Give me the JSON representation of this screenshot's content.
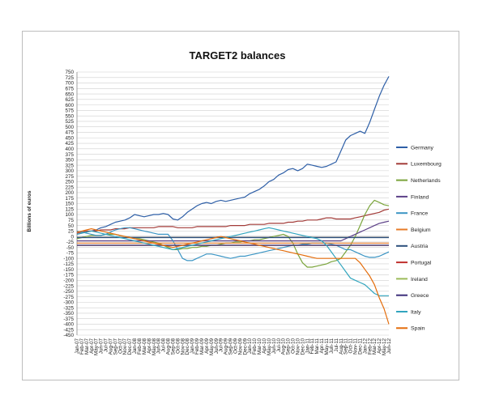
{
  "chart_data": {
    "type": "line",
    "title": "TARGET2 balances",
    "xlabel": "",
    "ylabel": "Billions of euros",
    "ylim": [
      -450,
      750
    ],
    "ytick_step": 25,
    "grid": true,
    "legend_position": "right",
    "x": [
      "Jan-07",
      "Feb-07",
      "Mar-07",
      "Apr-07",
      "May-07",
      "Jun-07",
      "Jul-07",
      "Aug-07",
      "Sep-07",
      "Oct-07",
      "Nov-07",
      "Dec-07",
      "Jan-08",
      "Feb-08",
      "Mar-08",
      "Apr-08",
      "May-08",
      "Jun-08",
      "Jul-08",
      "Aug-08",
      "Sep-08",
      "Oct-08",
      "Nov-08",
      "Dec-08",
      "Jan-09",
      "Feb-09",
      "Mar-09",
      "Apr-09",
      "May-09",
      "Jun-09",
      "Jul-09",
      "Aug-09",
      "Sep-09",
      "Oct-09",
      "Nov-09",
      "Dec-09",
      "Jan-10",
      "Feb-10",
      "Mar-10",
      "Apr-10",
      "May-10",
      "Jun-10",
      "Jul-10",
      "Aug-10",
      "Sep-10",
      "Oct-10",
      "Nov-10",
      "Dec-10",
      "Jan-11",
      "Feb-11",
      "Mar-11",
      "Apr-11",
      "May-11",
      "Jun-11",
      "Jul-11",
      "Aug-11",
      "Sep-11",
      "Oct-11",
      "Nov-11",
      "Dec-11",
      "Jan-12",
      "Feb-12",
      "Mar-12",
      "Apr-12",
      "May-12",
      "Jun-12"
    ],
    "series": [
      {
        "name": "Germany",
        "color": "#2e5fa7",
        "values": [
          10,
          15,
          20,
          25,
          30,
          40,
          45,
          55,
          65,
          70,
          75,
          85,
          100,
          95,
          90,
          95,
          100,
          100,
          105,
          100,
          80,
          75,
          90,
          110,
          125,
          140,
          150,
          155,
          150,
          160,
          165,
          160,
          165,
          170,
          175,
          180,
          195,
          205,
          215,
          230,
          250,
          260,
          280,
          290,
          305,
          310,
          300,
          310,
          330,
          325,
          320,
          315,
          320,
          330,
          340,
          390,
          440,
          460,
          470,
          480,
          470,
          520,
          580,
          640,
          690,
          730
        ]
      },
      {
        "name": "Luxembourg",
        "color": "#a33b38",
        "values": [
          15,
          20,
          25,
          25,
          25,
          30,
          30,
          30,
          35,
          35,
          35,
          40,
          40,
          40,
          40,
          40,
          40,
          45,
          45,
          45,
          45,
          40,
          40,
          40,
          40,
          45,
          45,
          45,
          45,
          45,
          45,
          45,
          50,
          50,
          50,
          50,
          55,
          55,
          55,
          55,
          60,
          60,
          60,
          60,
          65,
          65,
          70,
          70,
          75,
          75,
          75,
          80,
          85,
          85,
          80,
          80,
          80,
          80,
          85,
          90,
          95,
          100,
          105,
          110,
          120,
          125
        ]
      },
      {
        "name": "Netherlands",
        "color": "#7aa43b",
        "values": [
          -10,
          -5,
          0,
          5,
          5,
          5,
          10,
          10,
          10,
          5,
          0,
          -5,
          -10,
          -10,
          -15,
          -20,
          -25,
          -30,
          -40,
          -50,
          -60,
          -60,
          -55,
          -55,
          -50,
          -50,
          -45,
          -45,
          -40,
          -40,
          -35,
          -30,
          -30,
          -25,
          -25,
          -20,
          -20,
          -15,
          -15,
          -10,
          -5,
          0,
          5,
          10,
          0,
          -30,
          -80,
          -120,
          -140,
          -140,
          -135,
          -130,
          -125,
          -115,
          -110,
          -100,
          -70,
          -40,
          0,
          50,
          100,
          140,
          165,
          155,
          145,
          140
        ]
      },
      {
        "name": "Finland",
        "color": "#5d4188",
        "values": [
          -20,
          -20,
          -20,
          -20,
          -20,
          -20,
          -20,
          -20,
          -20,
          -20,
          -20,
          -20,
          -20,
          -20,
          -20,
          -20,
          -20,
          -20,
          -20,
          -20,
          -20,
          -20,
          -20,
          -20,
          -20,
          -20,
          -20,
          -20,
          -20,
          -20,
          -20,
          -20,
          -20,
          -20,
          -20,
          -20,
          -20,
          -20,
          -20,
          -20,
          -20,
          -20,
          -20,
          -20,
          -20,
          -20,
          -20,
          -20,
          -20,
          -20,
          -20,
          -20,
          -20,
          -20,
          -20,
          -20,
          -10,
          0,
          10,
          20,
          30,
          40,
          50,
          60,
          65,
          70
        ]
      },
      {
        "name": "France",
        "color": "#3b95c4",
        "values": [
          25,
          20,
          15,
          10,
          5,
          5,
          10,
          20,
          30,
          35,
          40,
          40,
          35,
          30,
          25,
          20,
          15,
          10,
          10,
          10,
          -20,
          -60,
          -100,
          -110,
          -110,
          -100,
          -90,
          -80,
          -80,
          -85,
          -90,
          -95,
          -100,
          -95,
          -90,
          -90,
          -85,
          -80,
          -75,
          -70,
          -65,
          -60,
          -55,
          -50,
          -45,
          -40,
          -40,
          -35,
          -35,
          -30,
          -30,
          -30,
          -30,
          -35,
          -40,
          -50,
          -60,
          -60,
          -70,
          -80,
          -90,
          -95,
          -95,
          -90,
          -80,
          -70
        ]
      },
      {
        "name": "Belgium",
        "color": "#e77b28",
        "values": [
          -30,
          -30,
          -30,
          -30,
          -30,
          -30,
          -30,
          -30,
          -30,
          -30,
          -30,
          -30,
          -30,
          -30,
          -30,
          -30,
          -30,
          -30,
          -30,
          -30,
          -30,
          -30,
          -30,
          -30,
          -30,
          -30,
          -30,
          -30,
          -30,
          -30,
          -30,
          -30,
          -30,
          -30,
          -30,
          -30,
          -30,
          -30,
          -30,
          -30,
          -30,
          -30,
          -30,
          -30,
          -30,
          -30,
          -30,
          -30,
          -30,
          -30,
          -30,
          -30,
          -30,
          -30,
          -30,
          -30,
          -30,
          -30,
          -30,
          -30,
          -30,
          -30,
          -30,
          -30,
          -30,
          -30
        ]
      },
      {
        "name": "Austria",
        "color": "#2c4f7c",
        "values": [
          -5,
          -5,
          -5,
          -5,
          -5,
          -5,
          -5,
          -5,
          -5,
          -5,
          -5,
          -5,
          -5,
          -5,
          -5,
          -5,
          -5,
          -5,
          -5,
          -5,
          -5,
          -5,
          -5,
          -5,
          -5,
          -5,
          -5,
          -5,
          -5,
          -5,
          -5,
          -5,
          -5,
          -5,
          -5,
          -5,
          -5,
          -5,
          -5,
          -5,
          -5,
          -5,
          -5,
          -5,
          -5,
          -5,
          -5,
          -5,
          -5,
          -5,
          -5,
          -5,
          -5,
          -5,
          -5,
          -5,
          -5,
          -5,
          -5,
          -5,
          -5,
          -5,
          -5,
          -5,
          -5,
          -5
        ]
      },
      {
        "name": "Portugal",
        "color": "#c0302e",
        "values": [
          -40,
          -40,
          -40,
          -40,
          -40,
          -40,
          -40,
          -40,
          -40,
          -40,
          -40,
          -40,
          -40,
          -40,
          -40,
          -40,
          -40,
          -40,
          -40,
          -40,
          -40,
          -40,
          -40,
          -40,
          -40,
          -40,
          -40,
          -40,
          -40,
          -40,
          -40,
          -40,
          -40,
          -40,
          -40,
          -40,
          -40,
          -40,
          -40,
          -40,
          -40,
          -40,
          -40,
          -40,
          -40,
          -40,
          -40,
          -40,
          -40,
          -40,
          -40,
          -40,
          -40,
          -40,
          -40,
          -40,
          -40,
          -40,
          -40,
          -40,
          -40,
          -40,
          -40,
          -40,
          -40,
          -40
        ]
      },
      {
        "name": "Ireland",
        "color": "#9bbb59",
        "values": [
          -40,
          -40,
          -40,
          -40,
          -40,
          -40,
          -40,
          -40,
          -40,
          -40,
          -40,
          -40,
          -40,
          -40,
          -40,
          -40,
          -40,
          -40,
          -40,
          -40,
          -40,
          -40,
          -40,
          -40,
          -40,
          -40,
          -40,
          -40,
          -40,
          -40,
          -40,
          -40,
          -40,
          -40,
          -40,
          -40,
          -40,
          -40,
          -40,
          -40,
          -40,
          -40,
          -40,
          -40,
          -40,
          -40,
          -40,
          -40,
          -40,
          -40,
          -40,
          -40,
          -40,
          -40,
          -40,
          -40,
          -40,
          -40,
          -40,
          -40,
          -40,
          -40,
          -40,
          -40,
          -40,
          -40
        ]
      },
      {
        "name": "Greece",
        "color": "#3c2e7a",
        "values": [
          -40,
          -40,
          -40,
          -40,
          -40,
          -40,
          -40,
          -40,
          -40,
          -40,
          -40,
          -40,
          -40,
          -40,
          -40,
          -40,
          -40,
          -40,
          -40,
          -40,
          -40,
          -40,
          -40,
          -40,
          -40,
          -40,
          -40,
          -40,
          -40,
          -40,
          -40,
          -40,
          -40,
          -40,
          -40,
          -40,
          -40,
          -40,
          -40,
          -40,
          -40,
          -40,
          -40,
          -40,
          -40,
          -40,
          -40,
          -40,
          -40,
          -40,
          -40,
          -40,
          -40,
          -40,
          -40,
          -40,
          -40,
          -40,
          -40,
          -40,
          -40,
          -40,
          -40,
          -40,
          -40,
          -40
        ]
      },
      {
        "name": "Italy",
        "color": "#31a5be",
        "values": [
          10,
          15,
          20,
          25,
          20,
          15,
          10,
          5,
          0,
          -5,
          -10,
          -15,
          -20,
          -25,
          -30,
          -35,
          -40,
          -45,
          -50,
          -55,
          -60,
          -55,
          -50,
          -45,
          -40,
          -35,
          -30,
          -25,
          -20,
          -15,
          -10,
          -5,
          0,
          5,
          10,
          15,
          20,
          25,
          30,
          35,
          40,
          35,
          30,
          25,
          20,
          15,
          10,
          5,
          0,
          -5,
          -10,
          -20,
          -40,
          -70,
          -100,
          -130,
          -160,
          -190,
          -200,
          -210,
          -220,
          -240,
          -260,
          -270,
          -270,
          -270
        ]
      },
      {
        "name": "Spain",
        "color": "#e46c0a",
        "values": [
          20,
          25,
          30,
          35,
          30,
          25,
          20,
          15,
          10,
          5,
          0,
          -5,
          -10,
          -15,
          -20,
          -25,
          -30,
          -35,
          -40,
          -45,
          -50,
          -45,
          -40,
          -35,
          -30,
          -25,
          -20,
          -15,
          -10,
          -5,
          0,
          -5,
          -10,
          -15,
          -20,
          -25,
          -30,
          -35,
          -40,
          -45,
          -50,
          -55,
          -60,
          -65,
          -70,
          -75,
          -80,
          -85,
          -90,
          -95,
          -100,
          -100,
          -100,
          -100,
          -100,
          -100,
          -100,
          -100,
          -100,
          -120,
          -150,
          -180,
          -220,
          -280,
          -330,
          -400
        ]
      }
    ]
  }
}
